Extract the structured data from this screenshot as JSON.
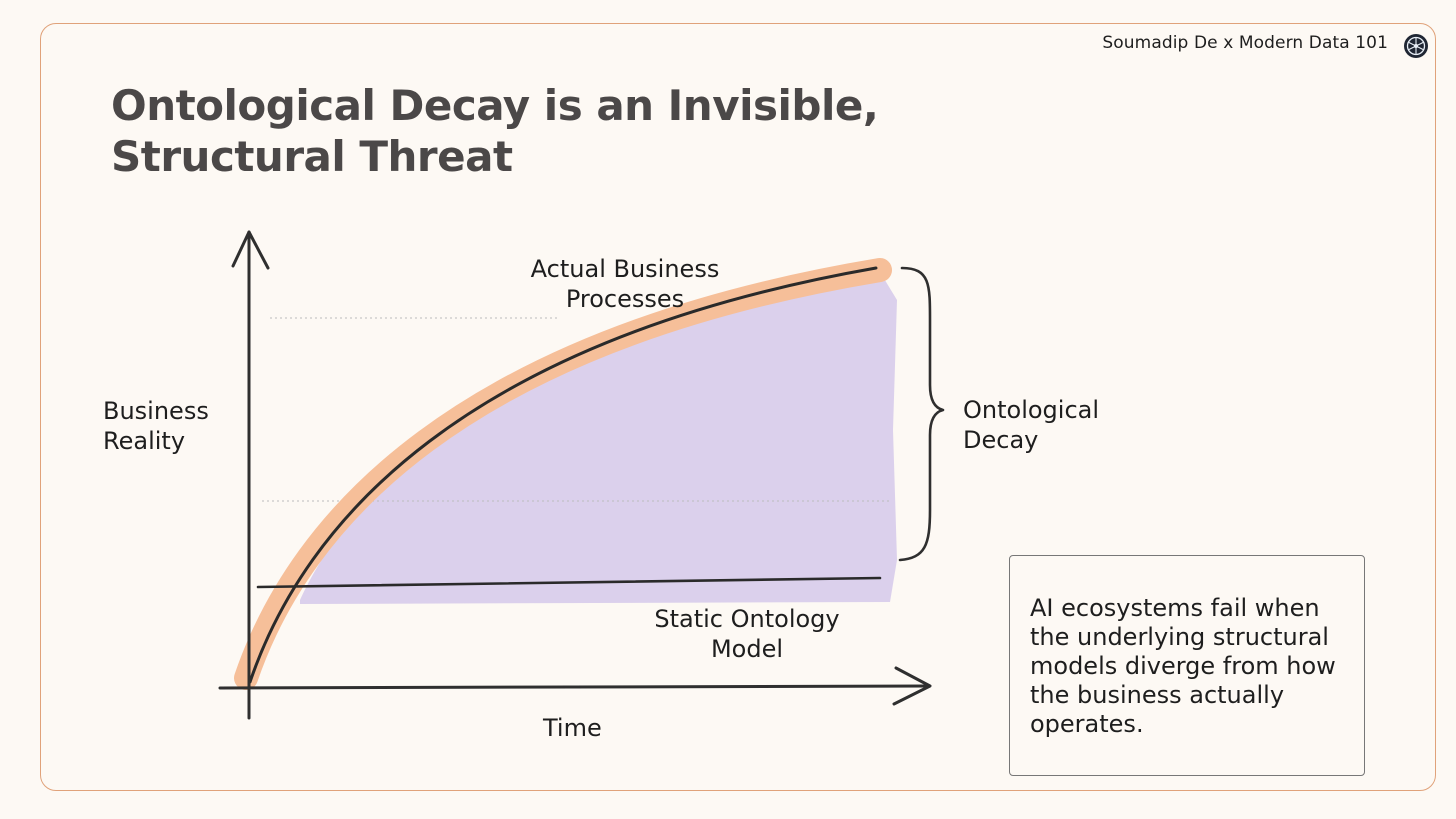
{
  "header": {
    "brand": "Soumadip De x Modern Data 101",
    "logo_icon": "globe-network-icon"
  },
  "title": {
    "line1": "Ontological Decay is an Invisible,",
    "line2": "Structural Threat"
  },
  "diagram": {
    "y_axis_label": {
      "line1": "Business",
      "line2": "Reality"
    },
    "x_axis_label": "Time",
    "curve_label": {
      "line1": "Actual Business",
      "line2": "Processes"
    },
    "baseline_label": {
      "line1": "Static Ontology",
      "line2": "Model"
    },
    "gap_label": {
      "line1": "Ontological",
      "line2": "Decay"
    },
    "colors": {
      "curve_highlight": "#f6bf99",
      "gap_fill": "#d9cdeb",
      "ink": "#2a2a2a"
    }
  },
  "callout": {
    "text": "AI ecosystems fail when the underlying structural models diverge from how the business actually operates."
  }
}
